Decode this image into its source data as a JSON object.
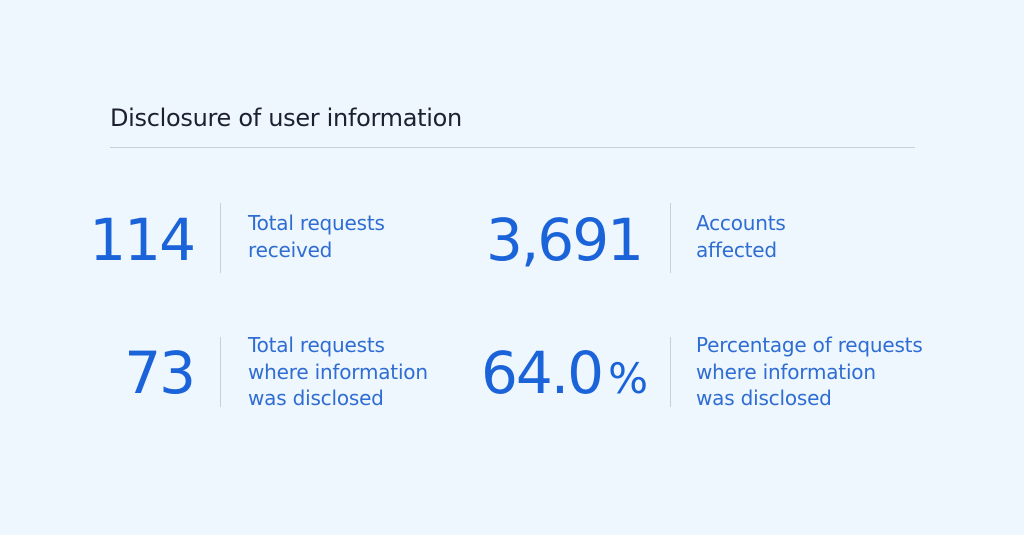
{
  "heading": "Disclosure of user information",
  "stats": [
    {
      "value": "114",
      "unit": "",
      "label_lines": [
        "Total requests",
        "received"
      ]
    },
    {
      "value": "3,691",
      "unit": "",
      "label_lines": [
        "Accounts",
        "affected"
      ]
    },
    {
      "value": "73",
      "unit": "",
      "label_lines": [
        "Total requests",
        "where information",
        "was disclosed"
      ]
    },
    {
      "value": "64.0",
      "unit": "%",
      "label_lines": [
        "Percentage of requests",
        "where information",
        "was disclosed"
      ]
    }
  ],
  "colors": {
    "background": "#eef6fe",
    "heading": "#1d2030",
    "accent_value": "#1a63d8",
    "accent_label": "#2f6dd2",
    "divider": "#c7cedc"
  }
}
